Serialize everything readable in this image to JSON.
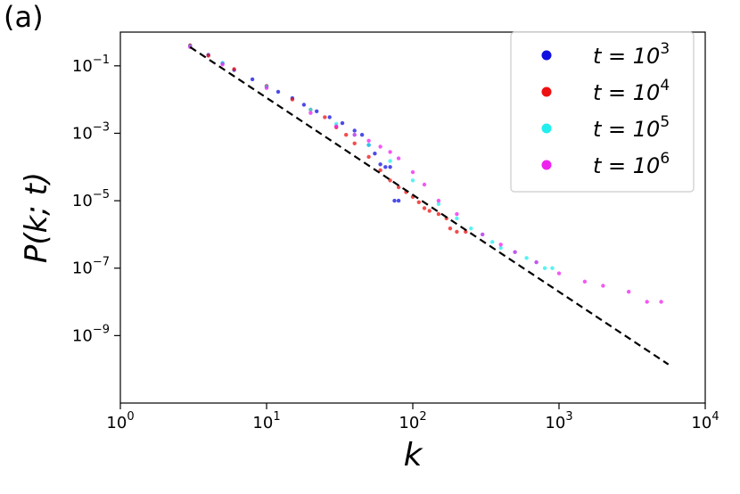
{
  "panel_label": "(a)",
  "chart_data": {
    "type": "scatter",
    "title": "",
    "xlabel": "k",
    "ylabel": "P(k; t)",
    "xscale": "log",
    "yscale": "log",
    "xlim": [
      1,
      10000
    ],
    "ylim": [
      1e-11,
      1
    ],
    "x_ticks": [
      {
        "value": 1,
        "base": "10",
        "exp": "0"
      },
      {
        "value": 10,
        "base": "10",
        "exp": "1"
      },
      {
        "value": 100,
        "base": "10",
        "exp": "2"
      },
      {
        "value": 1000,
        "base": "10",
        "exp": "3"
      },
      {
        "value": 10000,
        "base": "10",
        "exp": "4"
      }
    ],
    "y_ticks": [
      {
        "value": 0.1,
        "base": "10",
        "exp": "−1"
      },
      {
        "value": 0.001,
        "base": "10",
        "exp": "−3"
      },
      {
        "value": 1e-05,
        "base": "10",
        "exp": "−5"
      },
      {
        "value": 1e-07,
        "base": "10",
        "exp": "−7"
      },
      {
        "value": 1e-09,
        "base": "10",
        "exp": "−9"
      }
    ],
    "grid": false,
    "legend_position": "top-right",
    "series": [
      {
        "name": "t = 10^3",
        "label_base": "t = 10",
        "label_exp": "3",
        "color": "#1010e0",
        "points": [
          [
            3,
            0.4
          ],
          [
            4,
            0.21
          ],
          [
            5,
            0.12
          ],
          [
            6,
            0.075
          ],
          [
            8,
            0.04
          ],
          [
            10,
            0.025
          ],
          [
            12,
            0.017
          ],
          [
            15,
            0.011
          ],
          [
            18,
            0.007
          ],
          [
            22,
            0.0045
          ],
          [
            27,
            0.003
          ],
          [
            33,
            0.002
          ],
          [
            40,
            0.0012
          ],
          [
            45,
            0.0009
          ],
          [
            50,
            0.00045
          ],
          [
            55,
            0.00025
          ],
          [
            60,
            0.00012
          ],
          [
            65,
            0.0001
          ],
          [
            70,
            0.0001
          ],
          [
            75,
            1e-05
          ],
          [
            80,
            1e-05
          ]
        ]
      },
      {
        "name": "t = 10^4",
        "label_base": "t = 10",
        "label_exp": "4",
        "color": "#ee1111",
        "points": [
          [
            3,
            0.4
          ],
          [
            4,
            0.2
          ],
          [
            6,
            0.08
          ],
          [
            10,
            0.025
          ],
          [
            15,
            0.01
          ],
          [
            20,
            0.005
          ],
          [
            25,
            0.003
          ],
          [
            30,
            0.0015
          ],
          [
            35,
            0.0009
          ],
          [
            40,
            0.0005
          ],
          [
            50,
            0.0002
          ],
          [
            60,
            8e-05
          ],
          [
            70,
            4e-05
          ],
          [
            80,
            2.5e-05
          ],
          [
            90,
            1.8e-05
          ],
          [
            100,
            1.3e-05
          ],
          [
            110,
            9e-06
          ],
          [
            120,
            6e-06
          ],
          [
            130,
            5e-06
          ],
          [
            150,
            4e-06
          ],
          [
            170,
            3e-06
          ],
          [
            180,
            1.5e-06
          ],
          [
            200,
            1.2e-06
          ],
          [
            230,
            1.2e-06
          ]
        ]
      },
      {
        "name": "t = 10^5",
        "label_base": "t = 10",
        "label_exp": "5",
        "color": "#22eeee",
        "points": [
          [
            3,
            0.38
          ],
          [
            5,
            0.12
          ],
          [
            10,
            0.024
          ],
          [
            20,
            0.005
          ],
          [
            30,
            0.0019
          ],
          [
            40,
            0.0009
          ],
          [
            50,
            0.00045
          ],
          [
            70,
            0.00015
          ],
          [
            100,
            4e-05
          ],
          [
            150,
            8e-06
          ],
          [
            200,
            3e-06
          ],
          [
            250,
            1.5e-06
          ],
          [
            300,
            1e-06
          ],
          [
            350,
            6e-07
          ],
          [
            400,
            4e-07
          ],
          [
            500,
            3e-07
          ],
          [
            600,
            2e-07
          ],
          [
            700,
            1.5e-07
          ],
          [
            800,
            1e-07
          ],
          [
            900,
            1e-07
          ]
        ]
      },
      {
        "name": "t = 10^6",
        "label_base": "t = 10",
        "label_exp": "6",
        "color": "#ee22ee",
        "points": [
          [
            3,
            0.36
          ],
          [
            5,
            0.11
          ],
          [
            10,
            0.022
          ],
          [
            20,
            0.004
          ],
          [
            30,
            0.0016
          ],
          [
            40,
            0.0009
          ],
          [
            50,
            0.0006
          ],
          [
            60,
            0.0004
          ],
          [
            70,
            0.00028
          ],
          [
            80,
            0.00018
          ],
          [
            100,
            7e-05
          ],
          [
            120,
            3e-05
          ],
          [
            150,
            1e-05
          ],
          [
            200,
            4e-06
          ],
          [
            300,
            1e-06
          ],
          [
            400,
            5e-07
          ],
          [
            500,
            3e-07
          ],
          [
            700,
            1.5e-07
          ],
          [
            1000,
            7e-08
          ],
          [
            1500,
            4e-08
          ],
          [
            2000,
            3e-08
          ],
          [
            3000,
            2e-08
          ],
          [
            4000,
            1e-08
          ],
          [
            5000,
            1e-08
          ]
        ]
      }
    ],
    "reference_line": {
      "style": "dashed",
      "color": "#000000",
      "x": [
        3,
        5600
      ],
      "y": [
        0.36,
        1.4e-10
      ]
    }
  }
}
